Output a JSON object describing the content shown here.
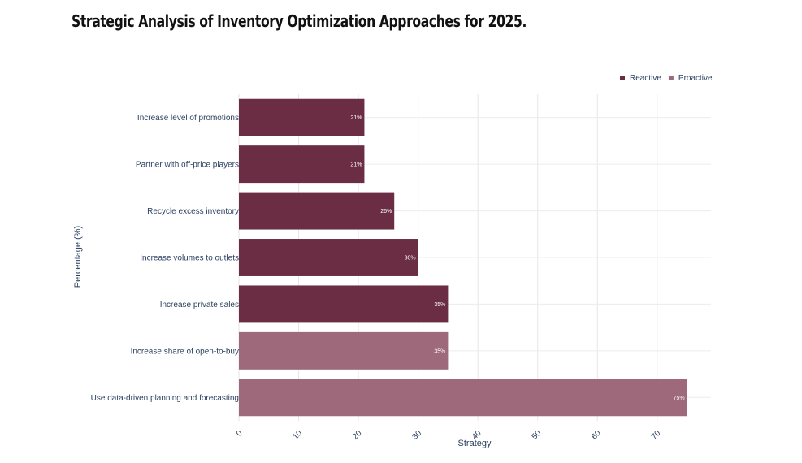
{
  "chart_data": {
    "type": "bar",
    "orientation": "horizontal",
    "title": "Strategic Analysis of Inventory Optimization Approaches for 2025.",
    "xlabel": "Strategy",
    "ylabel": "Percentage (%)",
    "xlim": [
      0,
      79
    ],
    "xticks": [
      "0",
      "10",
      "20",
      "30",
      "40",
      "50",
      "60",
      "70"
    ],
    "grid": true,
    "legend_position": "top-right",
    "series": [
      {
        "name": "Reactive",
        "color": "#6b2d44"
      },
      {
        "name": "Proactive",
        "color": "#9e6a7b"
      }
    ],
    "bars": [
      {
        "category": "Increase level of promotions",
        "value": 21,
        "label": "21%",
        "series": "Reactive"
      },
      {
        "category": "Partner with off-price players",
        "value": 21,
        "label": "21%",
        "series": "Reactive"
      },
      {
        "category": "Recycle excess inventory",
        "value": 26,
        "label": "26%",
        "series": "Reactive"
      },
      {
        "category": "Increase volumes to outlets",
        "value": 30,
        "label": "30%",
        "series": "Reactive"
      },
      {
        "category": "Increase private sales",
        "value": 35,
        "label": "35%",
        "series": "Reactive"
      },
      {
        "category": "Increase share of open-to-buy",
        "value": 35,
        "label": "35%",
        "series": "Proactive"
      },
      {
        "category": "Use data-driven planning and forecasting",
        "value": 75,
        "label": "75%",
        "series": "Proactive"
      }
    ]
  }
}
